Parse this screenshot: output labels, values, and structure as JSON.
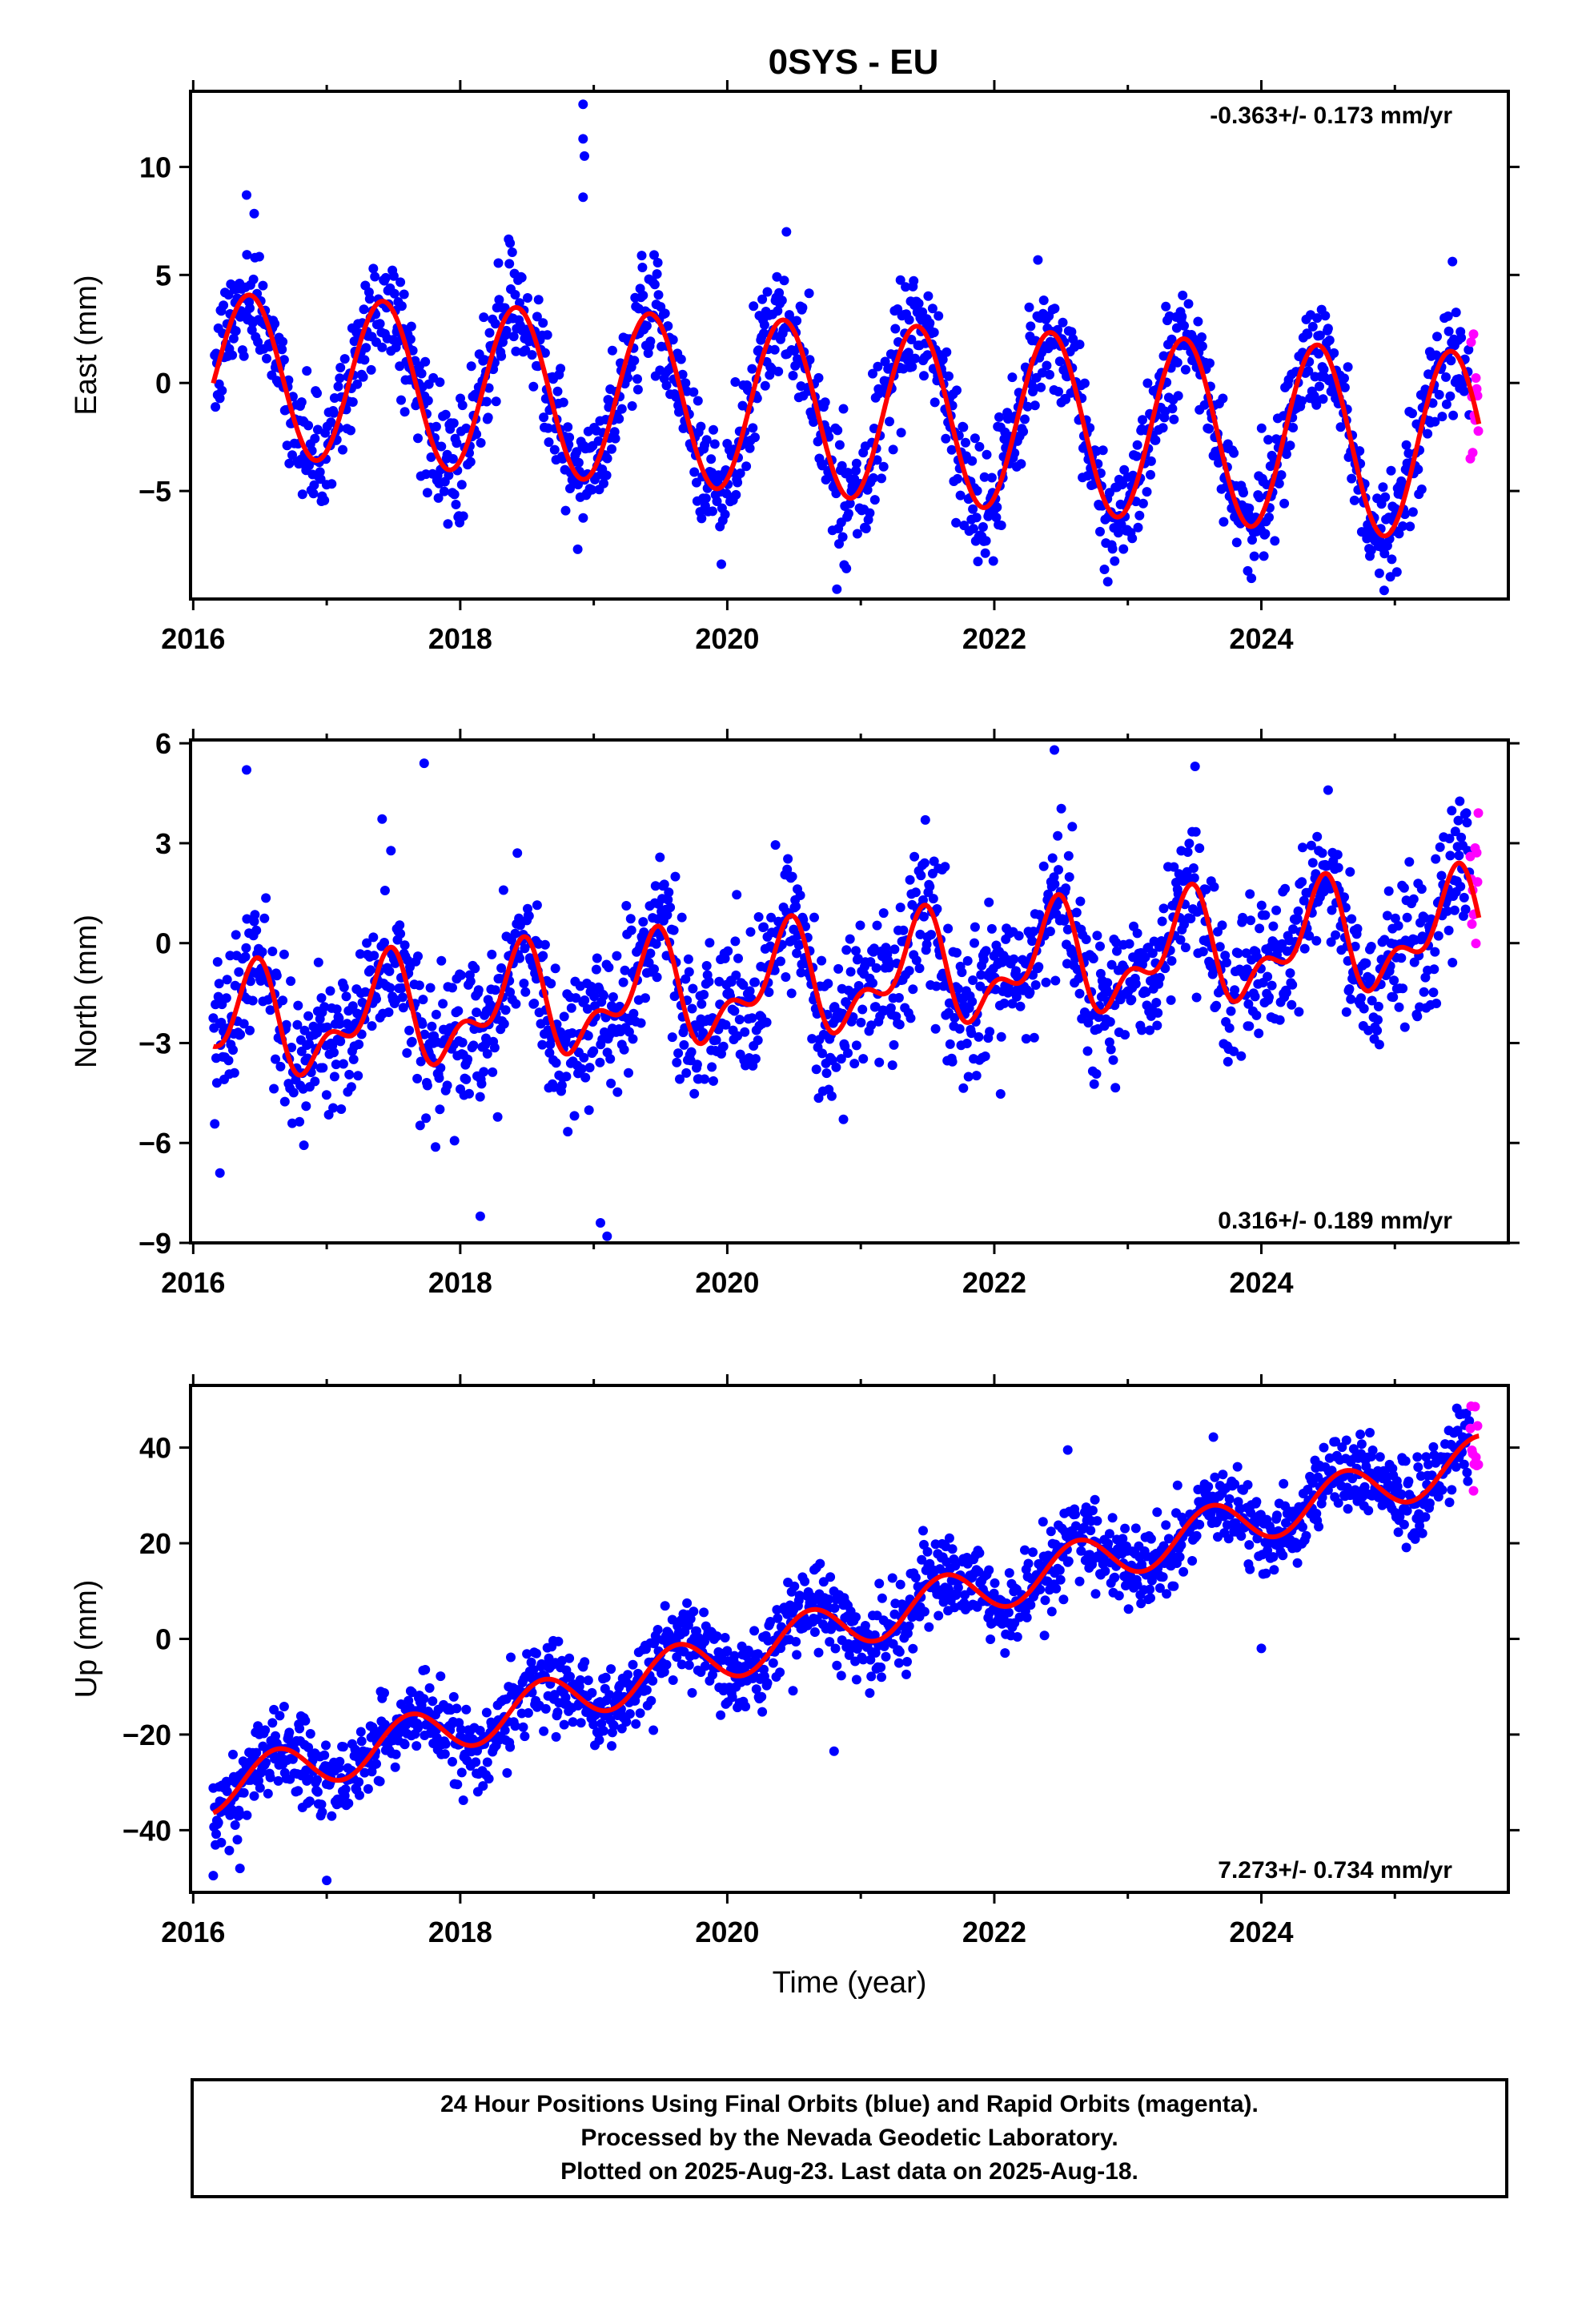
{
  "title": "0SYS - EU",
  "colors": {
    "final_orbits": "#0000ff",
    "rapid_orbits": "#ff00ff",
    "fit": "#ff0000",
    "frame": "#000000"
  },
  "chart_data": [
    {
      "type": "scatter",
      "name": "East",
      "ylabel": "East (mm)",
      "xlabel": "",
      "xlim": [
        2015.98,
        2025.85
      ],
      "ylim": [
        -10,
        13.5
      ],
      "x_ticks": [
        2016,
        2018,
        2020,
        2022,
        2024
      ],
      "x_tick_labels": [
        "2016",
        "2018",
        "2020",
        "2022",
        "2024"
      ],
      "y_ticks": [
        -5,
        0,
        5,
        10
      ],
      "y_tick_labels": [
        "−5",
        "0",
        "5",
        "10"
      ],
      "rate_label": "-0.363+/- 0.173 mm/yr",
      "rate_label_position": "top-right",
      "data_start": 2016.15,
      "final_end": 2025.56,
      "rapid_end": 2025.63,
      "fit_model": {
        "offset": 0.45,
        "rate": -0.363,
        "annual_amplitude": 3.7,
        "annual_peak": 0.42,
        "amplitude_decay": 0.02
      },
      "scatter_sigma": 1.3,
      "outliers": [
        {
          "x": 2018.92,
          "y": 12.9
        },
        {
          "x": 2018.92,
          "y": 11.3
        },
        {
          "x": 2018.93,
          "y": 10.5
        },
        {
          "x": 2018.92,
          "y": 8.6
        },
        {
          "x": 2018.88,
          "y": -7.7
        },
        {
          "x": 2024.92,
          "y": -9.6
        },
        {
          "x": 2022.85,
          "y": -9.2
        },
        {
          "x": 2016.4,
          "y": 8.7
        }
      ],
      "grid": false
    },
    {
      "type": "scatter",
      "name": "North",
      "ylabel": "North (mm)",
      "xlabel": "",
      "xlim": [
        2015.98,
        2025.85
      ],
      "ylim": [
        -9,
        6.1
      ],
      "x_ticks": [
        2016,
        2018,
        2020,
        2022,
        2024
      ],
      "x_tick_labels": [
        "2016",
        "2018",
        "2020",
        "2022",
        "2024"
      ],
      "y_ticks": [
        -9,
        -6,
        -3,
        0,
        3,
        6
      ],
      "y_tick_labels": [
        "−9",
        "−6",
        "−3",
        "0",
        "3",
        "6"
      ],
      "rate_label": "0.316+/- 0.189 mm/yr",
      "rate_label_position": "bottom-right",
      "data_start": 2016.15,
      "final_end": 2025.56,
      "rapid_end": 2025.63,
      "fit_model": {
        "offset": -2.6,
        "rate": 0.316,
        "annual_amplitude": 1.35,
        "annual_peak": 0.43,
        "semiannual_amplitude": 0.8,
        "semiannual_peak": 0.5
      },
      "scatter_sigma": 1.1,
      "outliers": [
        {
          "x": 2016.4,
          "y": 5.2
        },
        {
          "x": 2017.73,
          "y": 5.4
        },
        {
          "x": 2022.45,
          "y": 5.8
        },
        {
          "x": 2019.1,
          "y": -8.8
        },
        {
          "x": 2019.05,
          "y": -8.4
        },
        {
          "x": 2018.15,
          "y": -8.2
        },
        {
          "x": 2016.2,
          "y": -6.9
        }
      ],
      "grid": false
    },
    {
      "type": "scatter",
      "name": "Up",
      "ylabel": "Up (mm)",
      "xlabel": "Time (year)",
      "xlim": [
        2015.98,
        2025.85
      ],
      "ylim": [
        -53,
        53
      ],
      "x_ticks": [
        2016,
        2018,
        2020,
        2022,
        2024
      ],
      "x_tick_labels": [
        "2016",
        "2018",
        "2020",
        "2022",
        "2024"
      ],
      "y_ticks": [
        -40,
        -20,
        0,
        20,
        40
      ],
      "y_tick_labels": [
        "−40",
        "−20",
        "0",
        "20",
        "40"
      ],
      "rate_label": "7.273+/- 0.734 mm/yr",
      "rate_label_position": "bottom-right",
      "data_start": 2016.15,
      "final_end": 2025.56,
      "rapid_end": 2025.63,
      "fit_model": {
        "offset": -31.5,
        "rate": 7.273,
        "annual_amplitude": 5.0,
        "annual_peak": 0.62
      },
      "scatter_sigma": 4.2,
      "outliers": [
        {
          "x": 2016.15,
          "y": -49.5
        },
        {
          "x": 2016.35,
          "y": -48.0
        },
        {
          "x": 2017.0,
          "y": -50.5
        },
        {
          "x": 2022.55,
          "y": 39.5
        },
        {
          "x": 2020.8,
          "y": -23.5
        },
        {
          "x": 2024.0,
          "y": -2.0
        }
      ],
      "grid": false
    }
  ],
  "caption": {
    "line1": "24 Hour Positions Using Final Orbits (blue) and Rapid Orbits (magenta).",
    "line2": "Processed by the Nevada Geodetic Laboratory.",
    "line3": "Plotted on 2025-Aug-23. Last data on 2025-Aug-18."
  }
}
